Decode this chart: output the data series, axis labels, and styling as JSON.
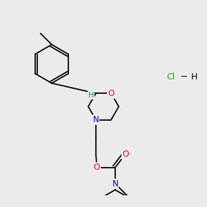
{
  "background_color": "#ebebeb",
  "atom_colors": {
    "O": "#ff0000",
    "N": "#0000cc",
    "C": "#000000",
    "H": "#008080",
    "Cl": "#00bb00"
  },
  "font_size_atoms": 8.5,
  "line_width": 1.3,
  "line_color": "#000000"
}
